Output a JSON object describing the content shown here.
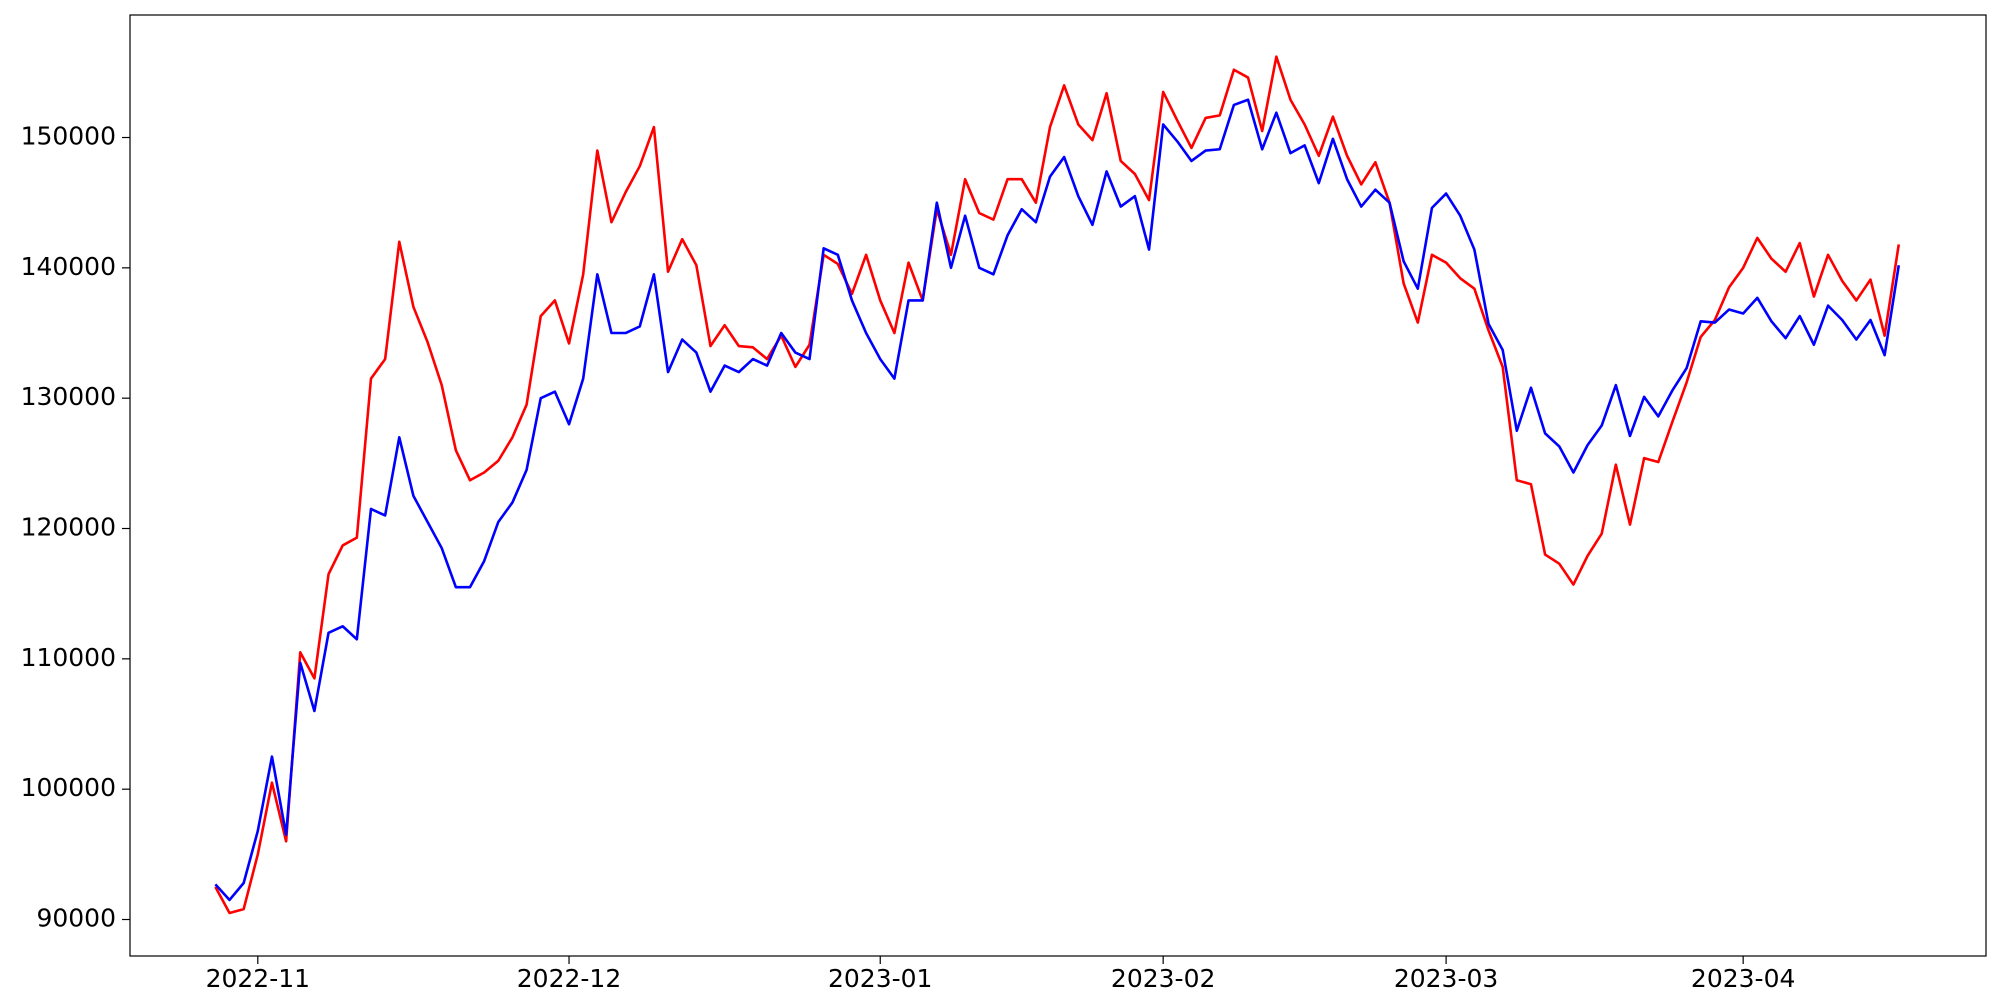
{
  "chart_data": {
    "type": "line",
    "categories": [
      null,
      null,
      null,
      "2022-11",
      null,
      null,
      null,
      null,
      null,
      null,
      null,
      null,
      null,
      null,
      null,
      null,
      null,
      null,
      null,
      null,
      null,
      null,
      null,
      null,
      null,
      "2022-12",
      null,
      null,
      null,
      null,
      null,
      null,
      null,
      null,
      null,
      null,
      null,
      null,
      null,
      null,
      null,
      null,
      null,
      null,
      null,
      null,
      null,
      "2023-01",
      null,
      null,
      null,
      null,
      null,
      null,
      null,
      null,
      null,
      null,
      null,
      null,
      null,
      null,
      null,
      null,
      null,
      null,
      null,
      "2023-02",
      null,
      null,
      null,
      null,
      null,
      null,
      null,
      null,
      null,
      null,
      null,
      null,
      null,
      null,
      null,
      null,
      null,
      null,
      null,
      "2023-03",
      null,
      null,
      null,
      null,
      null,
      null,
      null,
      null,
      null,
      null,
      null,
      null,
      null,
      null,
      null,
      null,
      null,
      null,
      null,
      null,
      "2023-04",
      null,
      null,
      null,
      null,
      null,
      null,
      null,
      null,
      null,
      null,
      null
    ],
    "series": [
      {
        "color": "#ff0000",
        "values": [
          92500,
          90500,
          90800,
          95000,
          100500,
          96000,
          110500,
          108500,
          116500,
          118700,
          119300,
          131500,
          133000,
          142000,
          137000,
          134300,
          131000,
          126000,
          123700,
          124300,
          125200,
          127000,
          129500,
          136300,
          137500,
          134200,
          139500,
          149000,
          143500,
          145800,
          147800,
          150800,
          139700,
          142200,
          140200,
          134000,
          135600,
          134000,
          133900,
          133000,
          134800,
          132400,
          134100,
          141000,
          140300,
          138000,
          141000,
          137500,
          135000,
          140400,
          137500,
          144500,
          141000,
          146800,
          144200,
          143700,
          146800,
          146800,
          145000,
          150800,
          154000,
          151000,
          149800,
          153400,
          148200,
          147200,
          145200,
          153500,
          151300,
          149200,
          151500,
          151700,
          155200,
          154600,
          150500,
          156200,
          152900,
          151000,
          148600,
          151600,
          148600,
          146400,
          148100,
          145000,
          138800,
          135800,
          141000,
          140400,
          139200,
          138400,
          135200,
          132400,
          123700,
          123400,
          118000,
          117300,
          115700,
          117900,
          119600,
          124900,
          120300,
          125400,
          125100,
          128200,
          131200,
          134700,
          136000,
          138500,
          140000,
          142300,
          140700,
          139700,
          141900,
          137800,
          141000,
          139000,
          137500,
          139100,
          134800,
          141800
        ]
      },
      {
        "color": "#0000ff",
        "values": [
          92700,
          91500,
          92800,
          96800,
          102500,
          96500,
          109700,
          106000,
          112000,
          112500,
          111500,
          121500,
          121000,
          127000,
          122500,
          120500,
          118500,
          115500,
          115500,
          117500,
          120500,
          122000,
          124500,
          130000,
          130500,
          128000,
          131500,
          139500,
          135000,
          135000,
          135500,
          139500,
          132000,
          134500,
          133500,
          130500,
          132500,
          132000,
          133000,
          132500,
          135000,
          133500,
          133000,
          141500,
          141000,
          137500,
          135000,
          133000,
          131500,
          137500,
          137500,
          145000,
          140000,
          144000,
          140000,
          139500,
          142500,
          144500,
          143500,
          147000,
          148500,
          145500,
          143300,
          147400,
          144700,
          145500,
          141400,
          151000,
          149700,
          148200,
          149000,
          149100,
          152500,
          152900,
          149100,
          151900,
          148800,
          149400,
          146500,
          149900,
          146800,
          144700,
          146000,
          145000,
          140500,
          138400,
          144600,
          145700,
          144000,
          141400,
          135700,
          133700,
          127500,
          130800,
          127300,
          126300,
          124300,
          126400,
          127900,
          131000,
          127100,
          130100,
          128600,
          130600,
          132300,
          135900,
          135800,
          136800,
          136500,
          137700,
          135900,
          134600,
          136300,
          134100,
          137100,
          136000,
          134500,
          136000,
          133300,
          140200
        ]
      }
    ],
    "ylim": [
      87200,
      159400
    ],
    "yticks": [
      90000,
      100000,
      110000,
      120000,
      130000,
      140000,
      150000
    ],
    "grid": false
  }
}
